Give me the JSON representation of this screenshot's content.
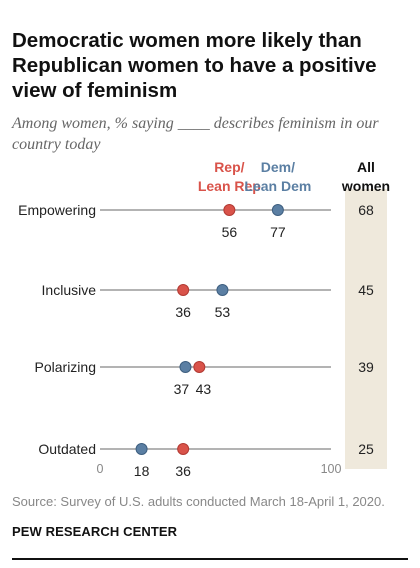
{
  "title": "Democratic women more likely than Republican women to have a positive view of feminism",
  "subtitle": "Among women, % saying ____ describes feminism in our country today",
  "source": "Source: Survey of U.S. adults conducted March 18-April 1, 2020.",
  "organization": "PEW RESEARCH CENTER",
  "colors": {
    "rep": "#d9534a",
    "dem": "#5b7fa3",
    "all_column": "#efe9dc",
    "line": "#9a9a9a"
  },
  "chart_data": {
    "type": "dot",
    "xlim": [
      0,
      100
    ],
    "x_ticks": [
      "0",
      "100"
    ],
    "categories": [
      "Empowering",
      "Inclusive",
      "Polarizing",
      "Outdated"
    ],
    "series": [
      {
        "name_lines": [
          "Rep/",
          "Lean Rep"
        ],
        "values": [
          56,
          36,
          43,
          36
        ]
      },
      {
        "name_lines": [
          "Dem/",
          "Lean Dem"
        ],
        "values": [
          77,
          53,
          37,
          18
        ]
      }
    ],
    "all_women": {
      "header_lines": [
        "All",
        "women"
      ],
      "values": [
        68,
        45,
        39,
        25
      ]
    }
  }
}
